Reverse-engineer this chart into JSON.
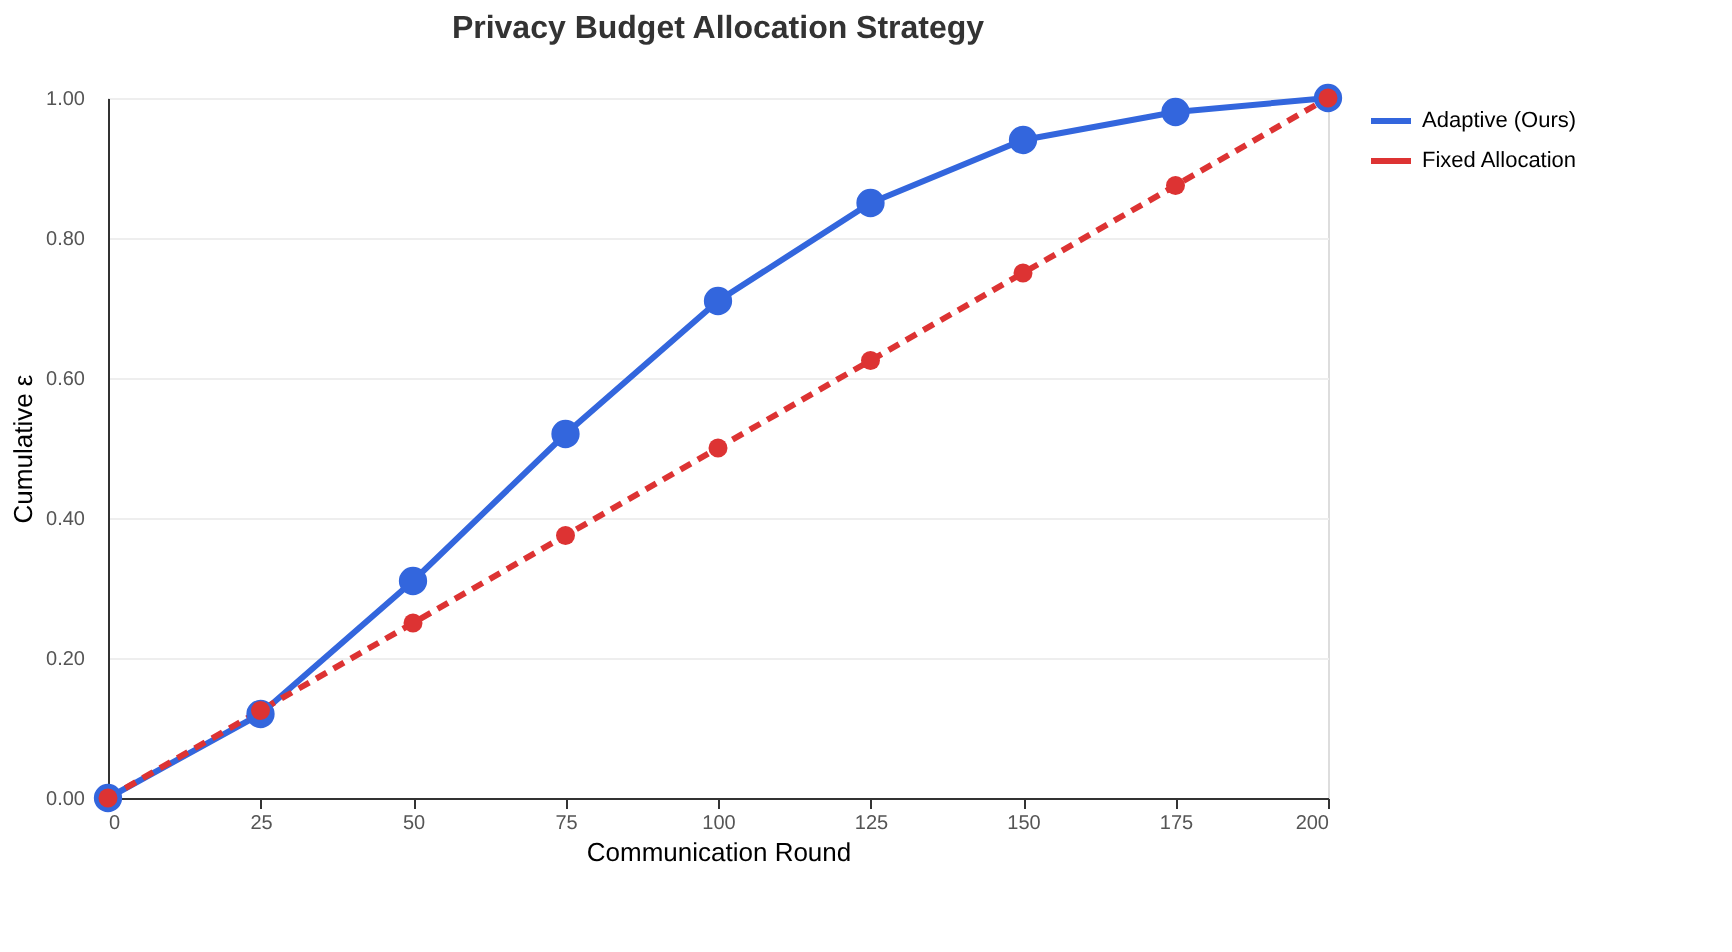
{
  "chart_data": {
    "type": "line",
    "title": "Privacy Budget Allocation Strategy",
    "xlabel": "Communication Round",
    "ylabel": "Cumulative ε",
    "x": [
      0,
      25,
      50,
      75,
      100,
      125,
      150,
      175,
      200
    ],
    "series": [
      {
        "name": "Adaptive (Ours)",
        "color": "#3366dd",
        "line_style": "solid",
        "values": [
          0,
          0.12,
          0.31,
          0.52,
          0.71,
          0.85,
          0.94,
          0.98,
          1.0
        ]
      },
      {
        "name": "Fixed Allocation",
        "color": "#dd3333",
        "line_style": "dashed",
        "values": [
          0,
          0.125,
          0.25,
          0.375,
          0.5,
          0.625,
          0.75,
          0.875,
          1.0
        ]
      }
    ],
    "xlim": [
      0,
      200
    ],
    "xticks": [
      0,
      25,
      50,
      75,
      100,
      125,
      150,
      175,
      200
    ],
    "ylim": [
      0,
      1
    ],
    "yticks": [
      {
        "value": 0,
        "label": "0.00"
      },
      {
        "value": 0.2,
        "label": "0.20"
      },
      {
        "value": 0.4,
        "label": "0.40"
      },
      {
        "value": 0.6,
        "label": "0.60"
      },
      {
        "value": 0.8,
        "label": "0.80"
      },
      {
        "value": 1,
        "label": "1.00"
      }
    ],
    "grid": "y",
    "legend": "top right",
    "marker": "circle"
  }
}
